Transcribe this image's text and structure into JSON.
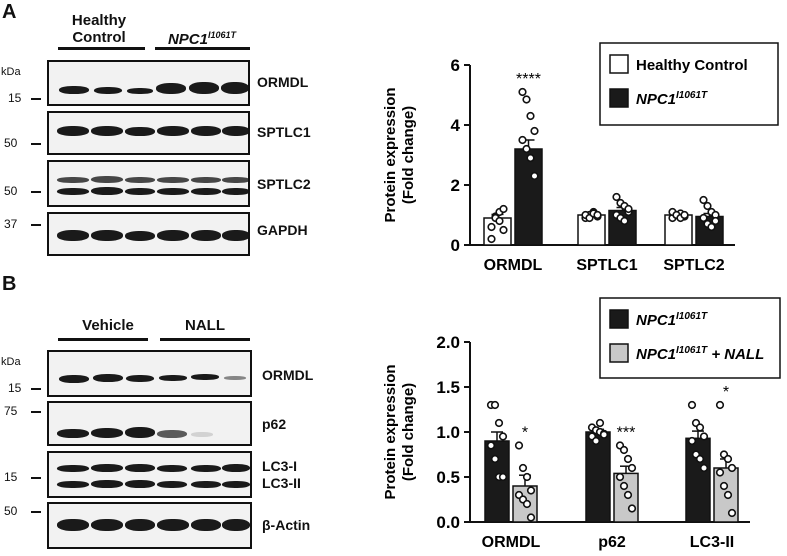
{
  "panels": [
    {
      "letter": "A",
      "groups": [
        {
          "label": "Healthy\nControl"
        },
        {
          "label": "NPC1",
          "sup": "I1061T"
        }
      ],
      "kda": "kDa",
      "blots": [
        {
          "protein": "ORMDL",
          "marker": "15"
        },
        {
          "protein": "SPTLC1",
          "marker": "50"
        },
        {
          "protein": "SPTLC2",
          "marker": "50"
        },
        {
          "protein": "GAPDH",
          "marker": "37"
        }
      ]
    },
    {
      "letter": "B",
      "groups": [
        {
          "label": "Vehicle"
        },
        {
          "label": "NALL"
        }
      ],
      "kda": "kDa",
      "blots": [
        {
          "protein": "ORMDL",
          "marker": "15"
        },
        {
          "protein": "p62",
          "marker": "75"
        },
        {
          "protein": "LC3-I\nLC3-II",
          "marker": "15"
        },
        {
          "protein": "β-Actin",
          "marker": "50"
        }
      ]
    }
  ],
  "chart_data": [
    {
      "type": "bar",
      "ylabel": "Protein expression\n(Fold change)",
      "ylim": [
        0,
        6
      ],
      "yticks": [
        "0",
        "2",
        "4",
        "6"
      ],
      "categories": [
        "ORMDL",
        "SPTLC1",
        "SPTLC2"
      ],
      "legend": [
        {
          "name": "Healthy Control",
          "color": "#ffffff"
        },
        {
          "name": "NPC1",
          "sup": "I1061T",
          "color": "#1a1a1a"
        }
      ],
      "series": [
        {
          "color": "#ffffff",
          "values": [
            0.9,
            1.0,
            1.0
          ],
          "errors": [
            0.12,
            0.05,
            0.05
          ],
          "points": [
            [
              0.6,
              0.95,
              1.1,
              1.2,
              0.2,
              0.9,
              0.8,
              0.5
            ],
            [
              0.9,
              1.0,
              1.1,
              0.95,
              1.0,
              0.9,
              1.05,
              1.0
            ],
            [
              0.9,
              1.0,
              1.05,
              0.95,
              1.1,
              1.0,
              0.9,
              1.0
            ]
          ]
        },
        {
          "color": "#1a1a1a",
          "values": [
            3.2,
            1.15,
            0.95
          ],
          "errors": [
            0.3,
            0.1,
            0.1
          ],
          "points": [
            [
              5.1,
              4.85,
              4.3,
              3.8,
              3.5,
              3.2,
              2.9,
              2.3
            ],
            [
              1.6,
              1.4,
              1.3,
              1.1,
              1.0,
              0.9,
              0.8,
              1.2
            ],
            [
              1.5,
              1.3,
              1.1,
              1.0,
              0.9,
              0.7,
              0.6,
              0.8
            ]
          ]
        }
      ],
      "annotations": [
        {
          "category": 0,
          "series": 1,
          "text": "****"
        }
      ]
    },
    {
      "type": "bar",
      "ylabel": "Protein expression\n(Fold change)",
      "ylim": [
        0,
        2.0
      ],
      "yticks": [
        "0.0",
        "0.5",
        "1.0",
        "1.5",
        "2.0"
      ],
      "categories": [
        "ORMDL",
        "p62",
        "LC3-II"
      ],
      "legend": [
        {
          "name": "NPC1",
          "sup": "I1061T",
          "color": "#1a1a1a"
        },
        {
          "name": "NPC1",
          "sup": "I1061T",
          "tail": " + NALL",
          "color": "#c8c8c8"
        }
      ],
      "series": [
        {
          "color": "#1a1a1a",
          "values": [
            0.9,
            1.0,
            0.93
          ],
          "errors": [
            0.1,
            0.03,
            0.08
          ],
          "points": [
            [
              1.3,
              1.3,
              1.1,
              0.95,
              0.85,
              0.7,
              0.5,
              0.5
            ],
            [
              1.05,
              1.02,
              1.0,
              0.98,
              0.95,
              0.9,
              1.1,
              0.97
            ],
            [
              1.3,
              1.1,
              1.05,
              0.95,
              0.9,
              0.75,
              0.7,
              0.6
            ]
          ]
        },
        {
          "color": "#c8c8c8",
          "values": [
            0.4,
            0.54,
            0.6
          ],
          "errors": [
            0.12,
            0.08,
            0.1
          ],
          "points": [
            [
              0.85,
              0.6,
              0.5,
              0.35,
              0.3,
              0.25,
              0.2,
              0.05
            ],
            [
              0.85,
              0.8,
              0.7,
              0.6,
              0.5,
              0.4,
              0.3,
              0.15
            ],
            [
              1.3,
              0.75,
              0.7,
              0.6,
              0.55,
              0.4,
              0.3,
              0.1
            ]
          ]
        }
      ],
      "annotations": [
        {
          "category": 0,
          "series": 1,
          "text": "*"
        },
        {
          "category": 1,
          "series": 1,
          "text": "***"
        },
        {
          "category": 2,
          "series": 1,
          "text": "*"
        }
      ]
    }
  ]
}
